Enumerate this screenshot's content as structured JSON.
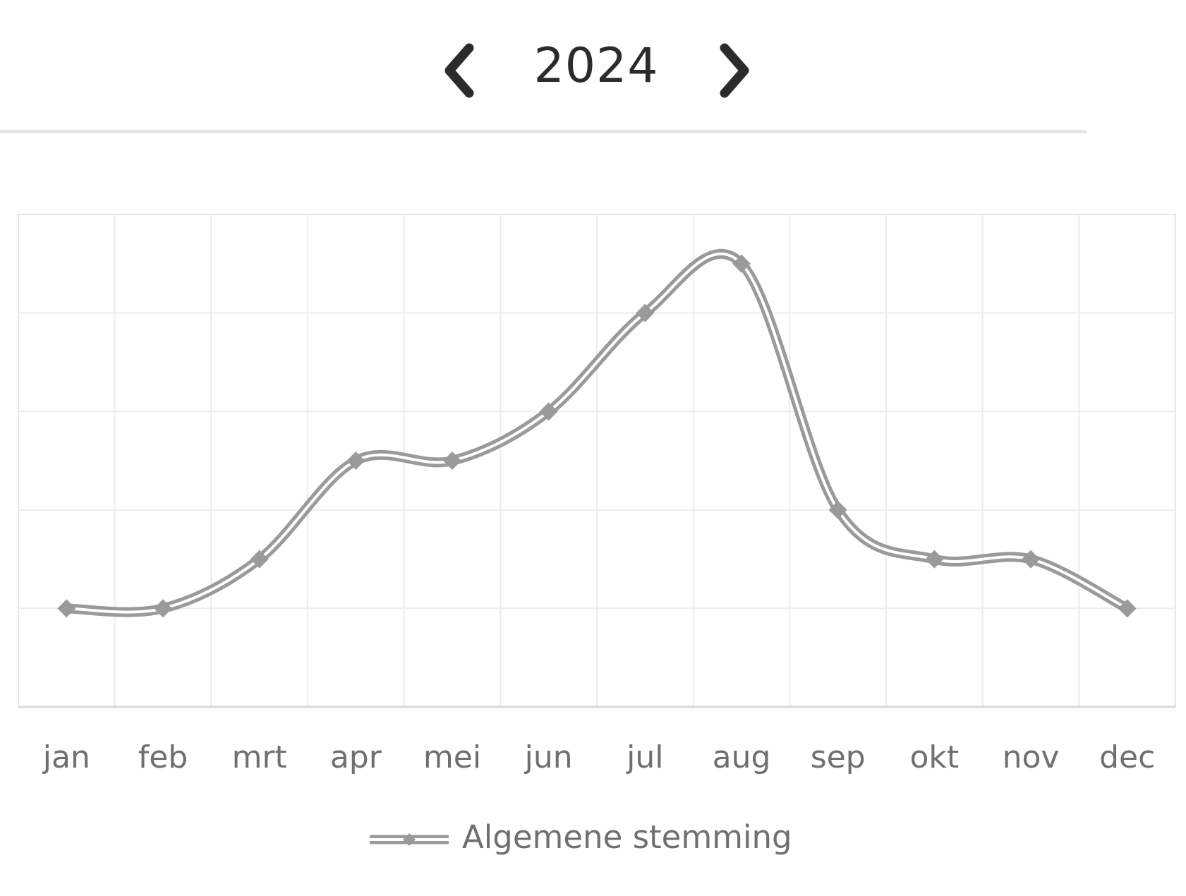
{
  "navigation": {
    "year": "2024",
    "prev_icon": "chevron-left-icon",
    "next_icon": "chevron-right-icon"
  },
  "chart_data": {
    "type": "line",
    "title": "",
    "xlabel": "",
    "ylabel": "",
    "categories": [
      "jan",
      "feb",
      "mrt",
      "apr",
      "mei",
      "jun",
      "jul",
      "aug",
      "sep",
      "okt",
      "nov",
      "dec"
    ],
    "series": [
      {
        "name": "Algemene stemming",
        "values": [
          1,
          1,
          1.5,
          2.5,
          2.5,
          3,
          4,
          4.5,
          2,
          1.5,
          1.5,
          1
        ]
      }
    ],
    "ylim": [
      0,
      5
    ],
    "grid": true,
    "smooth": true,
    "marker": "diamond",
    "line_color": "#9a9a9a",
    "legend_position": "bottom"
  }
}
